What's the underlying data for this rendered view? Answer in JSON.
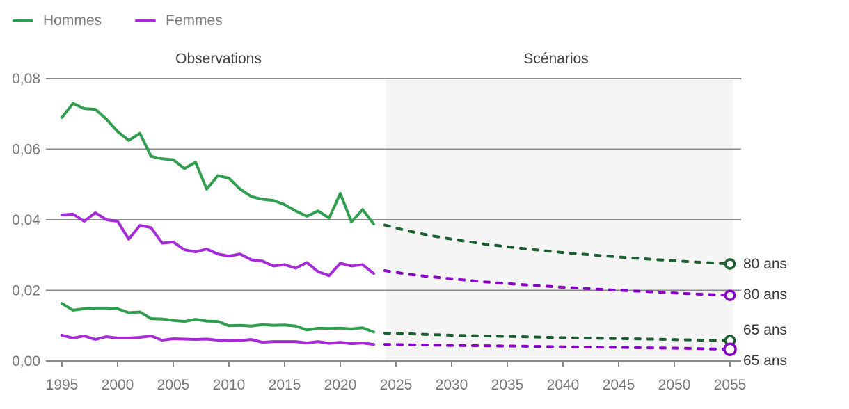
{
  "legend": {
    "items": [
      {
        "label": "Hommes",
        "color": "#2f9e4e"
      },
      {
        "label": "Femmes",
        "color": "#a62bd6"
      }
    ]
  },
  "sections": {
    "observations": "Observations",
    "scenarios": "Scénarios"
  },
  "end_labels": [
    {
      "text": "80 ans",
      "series": "hommes-80-scenario"
    },
    {
      "text": "80 ans",
      "series": "femmes-80-scenario"
    },
    {
      "text": "65 ans",
      "series": "hommes-65-scenario"
    },
    {
      "text": "65 ans",
      "series": "femmes-65-scenario"
    }
  ],
  "chart_data": {
    "type": "line",
    "title": "",
    "xlabel": "",
    "ylabel": "",
    "xlim": [
      1993.5,
      2056.5
    ],
    "ylim": [
      0,
      0.08
    ],
    "grid": true,
    "legend_position": "top-left",
    "x_ticks": [
      1995,
      2000,
      2005,
      2010,
      2015,
      2020,
      2025,
      2030,
      2035,
      2040,
      2045,
      2050,
      2055
    ],
    "y_ticks": [
      {
        "value": 0.08,
        "label": "0,08"
      },
      {
        "value": 0.06,
        "label": "0,06"
      },
      {
        "value": 0.04,
        "label": "0,04"
      },
      {
        "value": 0.02,
        "label": "0,02"
      },
      {
        "value": 0.0,
        "label": "0,00"
      }
    ],
    "scenario_band": {
      "start": 2024.1,
      "end": 2055.25,
      "color": "#f5f5f5"
    },
    "colors": {
      "hommes_observed": "#2f9e4e",
      "femmes_observed": "#a62bd6",
      "hommes_scenario": "#1b5e2f",
      "femmes_scenario": "#8800c7",
      "axis": "#8a8a8a",
      "tick_text": "#767676"
    },
    "series": [
      {
        "id": "hommes-80-obs",
        "name": "Hommes 80 ans (observations)",
        "color": "#2f9e4e",
        "dashed": false,
        "endpoint_circle": false,
        "x": [
          1995,
          1996,
          1997,
          1998,
          1999,
          2000,
          2001,
          2002,
          2003,
          2004,
          2005,
          2006,
          2007,
          2008,
          2009,
          2010,
          2011,
          2012,
          2013,
          2014,
          2015,
          2016,
          2017,
          2018,
          2019,
          2020,
          2021,
          2022,
          2023
        ],
        "values": [
          0.069,
          0.073,
          0.0715,
          0.0713,
          0.0685,
          0.065,
          0.0625,
          0.0645,
          0.058,
          0.0573,
          0.057,
          0.0545,
          0.0563,
          0.0487,
          0.0525,
          0.0518,
          0.0487,
          0.0466,
          0.0458,
          0.0455,
          0.0443,
          0.0425,
          0.041,
          0.0425,
          0.0405,
          0.0475,
          0.0394,
          0.0429,
          0.0388
        ]
      },
      {
        "id": "femmes-80-obs",
        "name": "Femmes 80 ans (observations)",
        "color": "#a62bd6",
        "dashed": false,
        "endpoint_circle": false,
        "x": [
          1995,
          1996,
          1997,
          1998,
          1999,
          2000,
          2001,
          2002,
          2003,
          2004,
          2005,
          2006,
          2007,
          2008,
          2009,
          2010,
          2011,
          2012,
          2013,
          2014,
          2015,
          2016,
          2017,
          2018,
          2019,
          2020,
          2021,
          2022,
          2023
        ],
        "values": [
          0.0414,
          0.0416,
          0.0396,
          0.042,
          0.04,
          0.0396,
          0.0345,
          0.0384,
          0.0378,
          0.0334,
          0.0337,
          0.0315,
          0.0309,
          0.0317,
          0.0303,
          0.0297,
          0.0303,
          0.0287,
          0.0283,
          0.0269,
          0.0273,
          0.0263,
          0.0279,
          0.0253,
          0.0242,
          0.0277,
          0.0269,
          0.0273,
          0.0248
        ]
      },
      {
        "id": "hommes-65-obs",
        "name": "Hommes 65 ans (observations)",
        "color": "#2f9e4e",
        "dashed": false,
        "endpoint_circle": false,
        "x": [
          1995,
          1996,
          1997,
          1998,
          1999,
          2000,
          2001,
          2002,
          2003,
          2004,
          2005,
          2006,
          2007,
          2008,
          2009,
          2010,
          2011,
          2012,
          2013,
          2014,
          2015,
          2016,
          2017,
          2018,
          2019,
          2020,
          2021,
          2022,
          2023
        ],
        "values": [
          0.0163,
          0.0144,
          0.0148,
          0.015,
          0.015,
          0.0148,
          0.0137,
          0.0139,
          0.012,
          0.0119,
          0.0115,
          0.0112,
          0.0118,
          0.0113,
          0.0112,
          0.01,
          0.0101,
          0.0099,
          0.0103,
          0.0101,
          0.0102,
          0.0099,
          0.0088,
          0.0093,
          0.0092,
          0.0093,
          0.0091,
          0.0094,
          0.0082
        ]
      },
      {
        "id": "femmes-65-obs",
        "name": "Femmes 65 ans (observations)",
        "color": "#a62bd6",
        "dashed": false,
        "endpoint_circle": false,
        "x": [
          1995,
          1996,
          1997,
          1998,
          1999,
          2000,
          2001,
          2002,
          2003,
          2004,
          2005,
          2006,
          2007,
          2008,
          2009,
          2010,
          2011,
          2012,
          2013,
          2014,
          2015,
          2016,
          2017,
          2018,
          2019,
          2020,
          2021,
          2022,
          2023
        ],
        "values": [
          0.0073,
          0.0065,
          0.0071,
          0.0061,
          0.0069,
          0.0065,
          0.0065,
          0.0067,
          0.0071,
          0.0059,
          0.0063,
          0.0062,
          0.0061,
          0.0062,
          0.0059,
          0.0057,
          0.0058,
          0.0061,
          0.0053,
          0.0055,
          0.0055,
          0.0055,
          0.0051,
          0.0055,
          0.005,
          0.0053,
          0.0049,
          0.0051,
          0.0047
        ]
      },
      {
        "id": "hommes-80-scenario",
        "name": "Hommes 80 ans (scénario)",
        "color": "#1b5e2f",
        "dashed": true,
        "endpoint_circle": true,
        "end_label": "80 ans",
        "x": [
          2024,
          2026,
          2028,
          2030,
          2033,
          2036,
          2040,
          2044,
          2048,
          2051,
          2055
        ],
        "values": [
          0.0385,
          0.0369,
          0.0356,
          0.0345,
          0.0331,
          0.032,
          0.0307,
          0.0297,
          0.0288,
          0.0282,
          0.0275
        ]
      },
      {
        "id": "femmes-80-scenario",
        "name": "Femmes 80 ans (scénario)",
        "color": "#8800c7",
        "dashed": true,
        "endpoint_circle": true,
        "end_label": "80 ans",
        "x": [
          2024,
          2026,
          2028,
          2030,
          2033,
          2036,
          2040,
          2044,
          2048,
          2051,
          2055
        ],
        "values": [
          0.0256,
          0.0246,
          0.0239,
          0.0233,
          0.0224,
          0.0217,
          0.0209,
          0.0202,
          0.0196,
          0.0191,
          0.0186
        ]
      },
      {
        "id": "hommes-65-scenario",
        "name": "Hommes 65 ans (scénario)",
        "color": "#1b5e2f",
        "dashed": true,
        "endpoint_circle": true,
        "end_label": "65 ans",
        "x": [
          2024,
          2026,
          2028,
          2030,
          2033,
          2036,
          2040,
          2044,
          2048,
          2051,
          2055
        ],
        "values": [
          0.0079,
          0.0077,
          0.0075,
          0.0073,
          0.0071,
          0.0069,
          0.0066,
          0.0064,
          0.0062,
          0.006,
          0.0058
        ]
      },
      {
        "id": "femmes-65-scenario",
        "name": "Femmes 65 ans (scénario)",
        "color": "#8800c7",
        "dashed": true,
        "endpoint_circle": true,
        "end_label": "65 ans",
        "x": [
          2024,
          2026,
          2028,
          2030,
          2033,
          2036,
          2040,
          2044,
          2048,
          2051,
          2055
        ],
        "values": [
          0.0047,
          0.0046,
          0.0045,
          0.0044,
          0.0043,
          0.0042,
          0.004,
          0.0039,
          0.0037,
          0.0036,
          0.0033
        ]
      }
    ]
  }
}
